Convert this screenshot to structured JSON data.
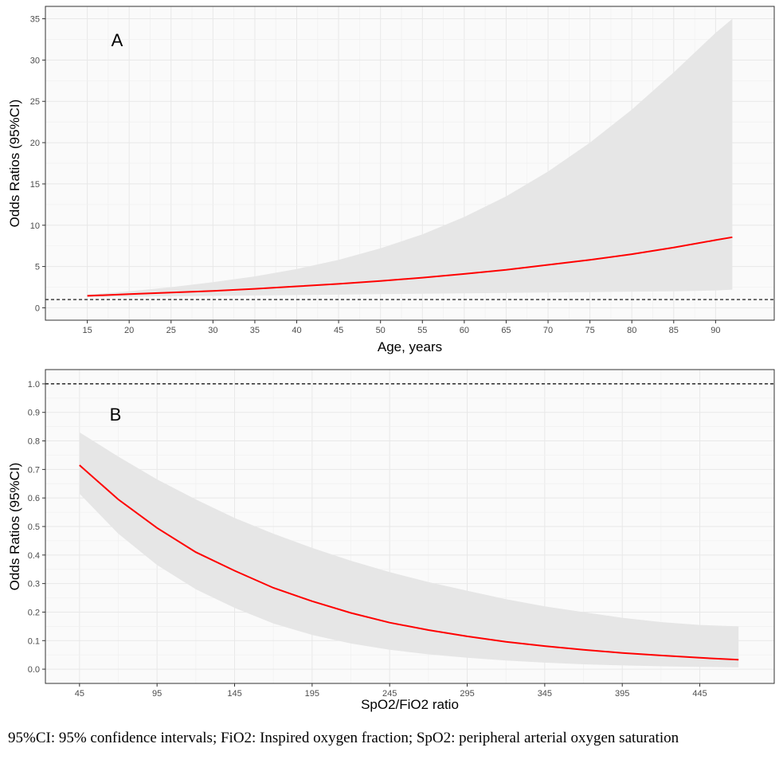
{
  "chart_data": [
    {
      "type": "line",
      "panel_label": "A",
      "xlabel": "Age, years",
      "ylabel": "Odds Ratios (95%CI)",
      "xlim": [
        10,
        97
      ],
      "ylim": [
        -1.5,
        36.5
      ],
      "xticks": [
        15,
        20,
        25,
        30,
        35,
        40,
        45,
        50,
        55,
        60,
        65,
        70,
        75,
        80,
        85,
        90
      ],
      "yticks": [
        0,
        5,
        10,
        15,
        20,
        25,
        30,
        35
      ],
      "reference_line": 1,
      "grid": true,
      "series": [
        {
          "role": "odds_ratio",
          "color": "#ff0000",
          "x": [
            15,
            20,
            25,
            30,
            35,
            40,
            45,
            50,
            55,
            60,
            65,
            70,
            75,
            80,
            85,
            90,
            92
          ],
          "y": [
            1.45,
            1.65,
            1.85,
            2.05,
            2.3,
            2.6,
            2.9,
            3.25,
            3.65,
            4.1,
            4.6,
            5.2,
            5.8,
            6.5,
            7.3,
            8.2,
            8.55
          ]
        },
        {
          "role": "ci_upper",
          "color": "#e6e6e6",
          "x": [
            15,
            20,
            25,
            30,
            35,
            40,
            45,
            50,
            55,
            60,
            65,
            70,
            75,
            80,
            85,
            90,
            92
          ],
          "y": [
            1.6,
            2.0,
            2.5,
            3.1,
            3.8,
            4.7,
            5.8,
            7.2,
            8.9,
            11.0,
            13.5,
            16.5,
            20.0,
            24.0,
            28.5,
            33.3,
            35.0
          ]
        },
        {
          "role": "ci_lower",
          "color": "#e6e6e6",
          "x": [
            15,
            20,
            25,
            30,
            35,
            40,
            45,
            50,
            55,
            60,
            65,
            70,
            75,
            80,
            85,
            90,
            92
          ],
          "y": [
            1.3,
            1.35,
            1.4,
            1.45,
            1.5,
            1.55,
            1.6,
            1.65,
            1.7,
            1.75,
            1.8,
            1.85,
            1.9,
            1.95,
            2.0,
            2.1,
            2.2
          ]
        }
      ]
    },
    {
      "type": "line",
      "panel_label": "B",
      "xlabel": "SpO2/FiO2 ratio",
      "ylabel": "Odds Ratios (95%CI)",
      "xlim": [
        23,
        493
      ],
      "ylim": [
        -0.05,
        1.05
      ],
      "xticks": [
        45,
        95,
        145,
        195,
        245,
        295,
        345,
        395,
        445
      ],
      "yticks": [
        0.0,
        0.1,
        0.2,
        0.3,
        0.4,
        0.5,
        0.6,
        0.7,
        0.8,
        0.9,
        1.0
      ],
      "ytick_labels": [
        "0.0",
        "0.1",
        "0.2",
        "0.3",
        "0.4",
        "0.5",
        "0.6",
        "0.7",
        "0.8",
        "0.9",
        "1.0"
      ],
      "reference_line": 1.0,
      "grid": true,
      "series": [
        {
          "role": "odds_ratio",
          "color": "#ff0000",
          "x": [
            45,
            70,
            95,
            120,
            145,
            170,
            195,
            220,
            245,
            270,
            295,
            320,
            345,
            370,
            395,
            420,
            445,
            470
          ],
          "y": [
            0.715,
            0.595,
            0.495,
            0.41,
            0.345,
            0.285,
            0.238,
            0.197,
            0.163,
            0.137,
            0.115,
            0.096,
            0.081,
            0.068,
            0.057,
            0.048,
            0.04,
            0.033
          ]
        },
        {
          "role": "ci_upper",
          "color": "#e6e6e6",
          "x": [
            45,
            70,
            95,
            120,
            145,
            170,
            195,
            220,
            245,
            270,
            295,
            320,
            345,
            370,
            395,
            420,
            445,
            470
          ],
          "y": [
            0.83,
            0.745,
            0.665,
            0.595,
            0.53,
            0.475,
            0.425,
            0.38,
            0.34,
            0.305,
            0.275,
            0.245,
            0.22,
            0.2,
            0.18,
            0.165,
            0.155,
            0.15
          ]
        },
        {
          "role": "ci_lower",
          "color": "#e6e6e6",
          "x": [
            45,
            70,
            95,
            120,
            145,
            170,
            195,
            220,
            245,
            270,
            295,
            320,
            345,
            370,
            395,
            420,
            445,
            470
          ],
          "y": [
            0.615,
            0.475,
            0.365,
            0.28,
            0.215,
            0.16,
            0.12,
            0.09,
            0.068,
            0.052,
            0.04,
            0.03,
            0.023,
            0.017,
            0.013,
            0.01,
            0.008,
            0.006
          ]
        }
      ]
    }
  ],
  "caption": "95%CI: 95% confidence intervals; FiO2: Inspired oxygen fraction; SpO2: peripheral arterial oxygen saturation"
}
